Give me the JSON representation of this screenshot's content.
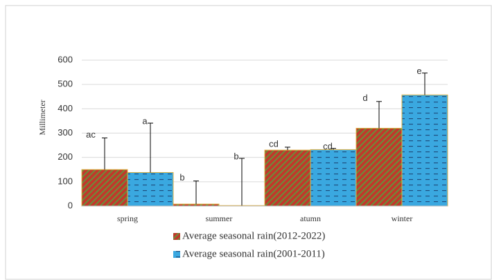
{
  "chart_data": {
    "type": "bar",
    "y_label": "Millimeter",
    "categories": [
      "spring",
      "summer",
      "atumn",
      "winter"
    ],
    "series": [
      {
        "name": "Average seasonal rain(2012-2022)",
        "color": "#c0392b",
        "values": [
          150,
          8,
          230,
          320
        ],
        "errors": [
          130,
          95,
          12,
          110
        ],
        "letters": [
          "ac",
          "b",
          "cd",
          "d"
        ]
      },
      {
        "name": "Average seasonal rain(2001-2011)",
        "color": "#3aa8e0",
        "values": [
          138,
          2,
          232,
          457
        ],
        "errors": [
          203,
          194,
          5,
          90
        ],
        "letters": [
          "a",
          "b",
          "cd",
          "e"
        ]
      }
    ],
    "ylim": [
      0,
      600
    ],
    "yticks": [
      0,
      100,
      200,
      300,
      400,
      500,
      600
    ],
    "grid": true
  }
}
